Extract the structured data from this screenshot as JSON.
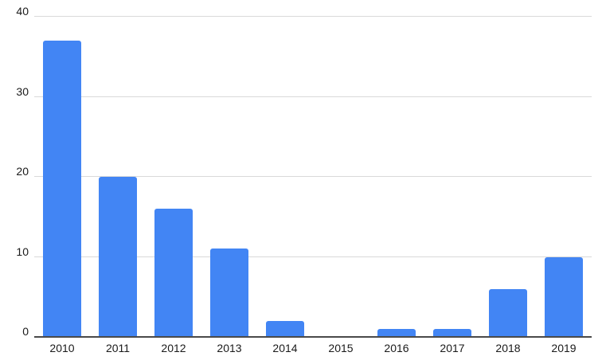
{
  "chart_data": {
    "type": "bar",
    "categories": [
      "2010",
      "2011",
      "2012",
      "2013",
      "2014",
      "2015",
      "2016",
      "2017",
      "2018",
      "2019"
    ],
    "values": [
      37,
      20,
      16,
      11,
      2,
      0,
      1,
      1,
      6,
      10
    ],
    "title": "",
    "xlabel": "",
    "ylabel": "",
    "ylim": [
      0,
      40
    ],
    "yticks": [
      0,
      10,
      20,
      30,
      40
    ],
    "grid": true,
    "legend_position": "none",
    "bar_color": "#4285f4",
    "gridline_color": "#d9d9d9",
    "axis_line_color": "#4a4a4a",
    "label_color": "#1a1a1a",
    "background_color": "#ffffff"
  }
}
